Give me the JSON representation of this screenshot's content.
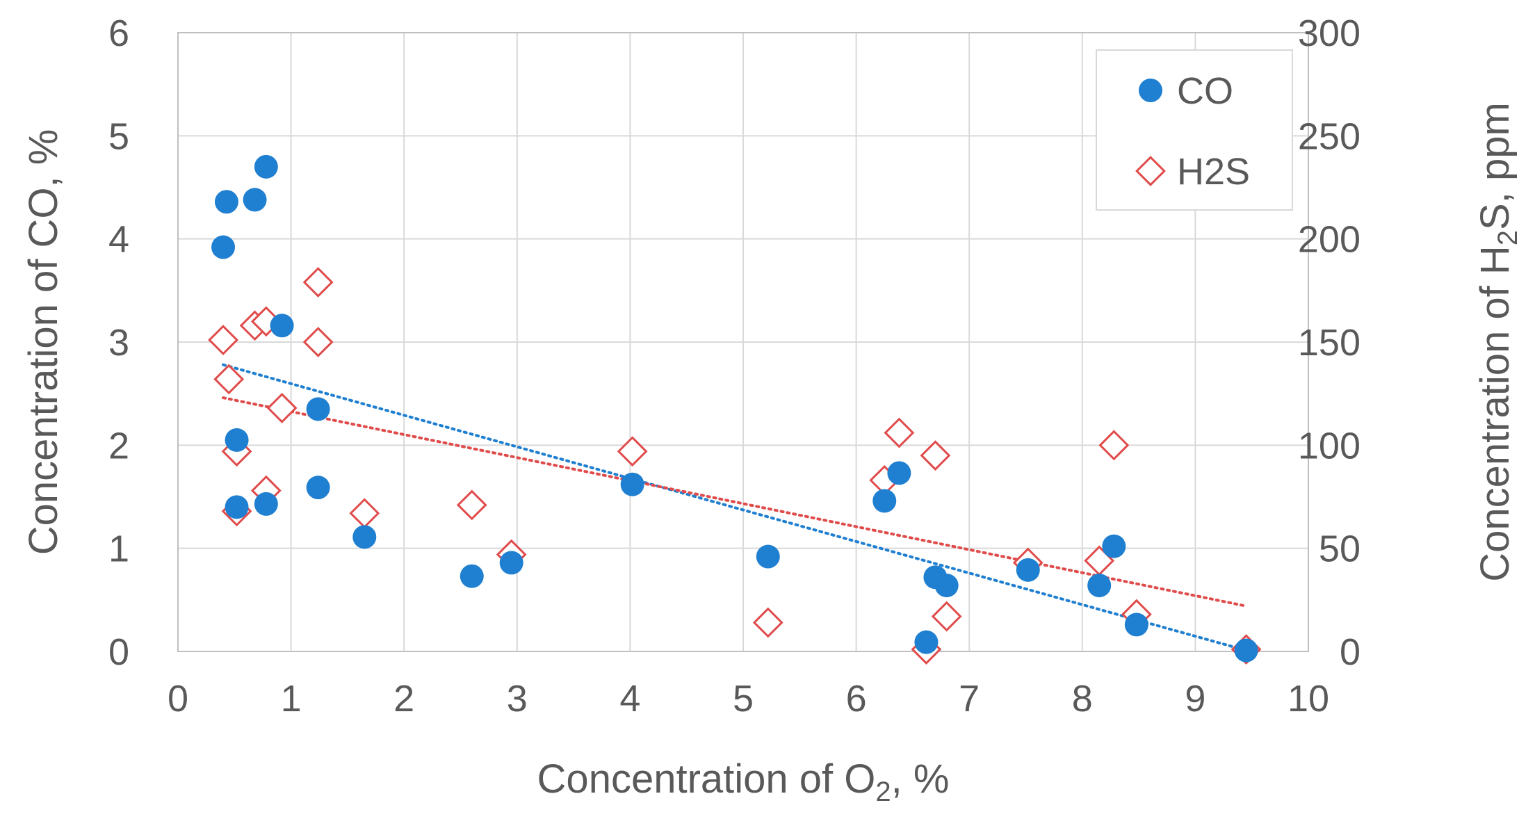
{
  "chart_data": {
    "type": "scatter",
    "xlabel": {
      "pre": "Concentration of O",
      "sub": "2",
      "post": ", %"
    },
    "ylabel": "Concentration of CO, %",
    "y2label": {
      "pre": "Concentration of H",
      "sub": "2",
      "post": "S, ppm"
    },
    "xlim": [
      0,
      10
    ],
    "ylim": [
      0,
      6
    ],
    "y2lim": [
      0,
      300
    ],
    "xticks": [
      "0",
      "1",
      "2",
      "3",
      "4",
      "5",
      "6",
      "7",
      "8",
      "9",
      "10"
    ],
    "yticks": [
      "0",
      "1",
      "2",
      "3",
      "4",
      "5",
      "6"
    ],
    "y2ticks": [
      "0",
      "50",
      "100",
      "150",
      "200",
      "250",
      "300"
    ],
    "grid": true,
    "legend_position": "top-right",
    "series": [
      {
        "name": "CO",
        "axis": "left",
        "marker": "circle",
        "color": "#1f7fd0",
        "points": [
          [
            0.4,
            3.92
          ],
          [
            0.43,
            4.36
          ],
          [
            0.68,
            4.38
          ],
          [
            0.78,
            4.7
          ],
          [
            0.92,
            3.16
          ],
          [
            0.52,
            2.05
          ],
          [
            0.52,
            1.4
          ],
          [
            0.78,
            1.43
          ],
          [
            1.24,
            2.35
          ],
          [
            1.24,
            1.59
          ],
          [
            1.65,
            1.11
          ],
          [
            2.6,
            0.73
          ],
          [
            2.95,
            0.86
          ],
          [
            4.02,
            1.62
          ],
          [
            5.22,
            0.92
          ],
          [
            6.25,
            1.46
          ],
          [
            6.38,
            1.73
          ],
          [
            6.62,
            0.09
          ],
          [
            6.7,
            0.72
          ],
          [
            6.8,
            0.64
          ],
          [
            7.52,
            0.79
          ],
          [
            8.15,
            0.64
          ],
          [
            8.28,
            1.02
          ],
          [
            8.48,
            0.26
          ],
          [
            9.45,
            0.01
          ]
        ],
        "trendline": {
          "x": [
            0.4,
            9.45
          ],
          "y": [
            2.78,
            0.01
          ]
        }
      },
      {
        "name": "H2S",
        "axis": "right",
        "marker": "diamond-open",
        "color": "#e04b4b",
        "points": [
          [
            0.4,
            151
          ],
          [
            0.45,
            132
          ],
          [
            0.52,
            97
          ],
          [
            0.52,
            68
          ],
          [
            0.68,
            158
          ],
          [
            0.78,
            160
          ],
          [
            0.78,
            78
          ],
          [
            0.92,
            118
          ],
          [
            1.24,
            179
          ],
          [
            1.24,
            150
          ],
          [
            1.65,
            67
          ],
          [
            2.6,
            71
          ],
          [
            2.95,
            47
          ],
          [
            4.02,
            97
          ],
          [
            5.22,
            14
          ],
          [
            6.25,
            83
          ],
          [
            6.38,
            106
          ],
          [
            6.62,
            1
          ],
          [
            6.7,
            95
          ],
          [
            6.8,
            17
          ],
          [
            7.52,
            43
          ],
          [
            8.15,
            44
          ],
          [
            8.28,
            100
          ],
          [
            8.48,
            18
          ],
          [
            9.45,
            1
          ]
        ],
        "trendline": {
          "x": [
            0.4,
            9.45
          ],
          "y": [
            123,
            22
          ]
        }
      }
    ]
  }
}
